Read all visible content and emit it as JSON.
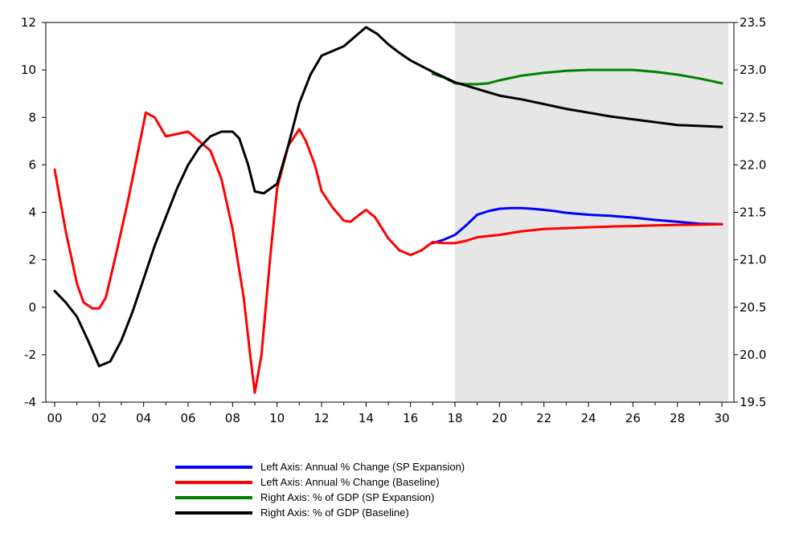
{
  "chart_data": {
    "type": "line",
    "x_tick_labels": [
      "00",
      "02",
      "04",
      "06",
      "08",
      "10",
      "12",
      "14",
      "16",
      "18",
      "20",
      "22",
      "24",
      "26",
      "28",
      "30"
    ],
    "xlim": [
      2000,
      2030
    ],
    "left_axis": {
      "ylim": [
        -4,
        12
      ],
      "ticks": [
        "-4",
        "-2",
        "0",
        "2",
        "4",
        "6",
        "8",
        "10",
        "12"
      ]
    },
    "right_axis": {
      "ylim": [
        19.5,
        23.5
      ],
      "ticks": [
        "19.5",
        "20.0",
        "20.5",
        "21.0",
        "21.5",
        "22.0",
        "22.5",
        "23.0",
        "23.5"
      ]
    },
    "shaded_region": {
      "x": [
        2018,
        2030.3
      ],
      "color": "#e6e6e6"
    },
    "grid": false,
    "legend_position": "bottom",
    "series": [
      {
        "name": "Left Axis: Annual % Change (SP Expansion)",
        "axis": "left",
        "color": "#0000ff",
        "points": [
          [
            2017,
            2.7
          ],
          [
            2017.5,
            2.85
          ],
          [
            2018,
            3.05
          ],
          [
            2018.5,
            3.45
          ],
          [
            2019,
            3.9
          ],
          [
            2019.5,
            4.05
          ],
          [
            2020,
            4.15
          ],
          [
            2020.5,
            4.18
          ],
          [
            2021,
            4.18
          ],
          [
            2021.5,
            4.15
          ],
          [
            2022,
            4.1
          ],
          [
            2022.5,
            4.05
          ],
          [
            2023,
            3.98
          ],
          [
            2024,
            3.9
          ],
          [
            2025,
            3.85
          ],
          [
            2026,
            3.78
          ],
          [
            2027,
            3.68
          ],
          [
            2028,
            3.6
          ],
          [
            2029,
            3.52
          ],
          [
            2030,
            3.5
          ]
        ]
      },
      {
        "name": "Left Axis: Annual % Change (Baseline)",
        "axis": "left",
        "color": "#ff0000",
        "points": [
          [
            2000,
            5.8
          ],
          [
            2000.5,
            3.2
          ],
          [
            2001,
            1.0
          ],
          [
            2001.3,
            0.2
          ],
          [
            2001.7,
            -0.05
          ],
          [
            2002,
            -0.05
          ],
          [
            2002.3,
            0.4
          ],
          [
            2002.8,
            2.4
          ],
          [
            2003.3,
            4.5
          ],
          [
            2003.8,
            6.8
          ],
          [
            2004.1,
            8.2
          ],
          [
            2004.5,
            8.0
          ],
          [
            2005,
            7.2
          ],
          [
            2005.5,
            7.3
          ],
          [
            2006,
            7.4
          ],
          [
            2006.5,
            7.0
          ],
          [
            2007,
            6.6
          ],
          [
            2007.5,
            5.4
          ],
          [
            2008,
            3.3
          ],
          [
            2008.5,
            0.4
          ],
          [
            2008.8,
            -2.1
          ],
          [
            2009,
            -3.6
          ],
          [
            2009.3,
            -2.0
          ],
          [
            2009.7,
            2.2
          ],
          [
            2010,
            5.0
          ],
          [
            2010.5,
            6.8
          ],
          [
            2011,
            7.5
          ],
          [
            2011.3,
            7.0
          ],
          [
            2011.7,
            6.0
          ],
          [
            2012,
            4.9
          ],
          [
            2012.5,
            4.2
          ],
          [
            2013,
            3.65
          ],
          [
            2013.3,
            3.6
          ],
          [
            2013.7,
            3.9
          ],
          [
            2014,
            4.1
          ],
          [
            2014.4,
            3.8
          ],
          [
            2015,
            2.9
          ],
          [
            2015.5,
            2.4
          ],
          [
            2016,
            2.2
          ],
          [
            2016.5,
            2.4
          ],
          [
            2017,
            2.75
          ],
          [
            2017.5,
            2.7
          ],
          [
            2018,
            2.7
          ],
          [
            2018.5,
            2.8
          ],
          [
            2019,
            2.95
          ],
          [
            2020,
            3.05
          ],
          [
            2021,
            3.2
          ],
          [
            2022,
            3.3
          ],
          [
            2023,
            3.33
          ],
          [
            2024,
            3.37
          ],
          [
            2025,
            3.4
          ],
          [
            2026,
            3.42
          ],
          [
            2027,
            3.45
          ],
          [
            2028,
            3.47
          ],
          [
            2029,
            3.48
          ],
          [
            2030,
            3.5
          ]
        ]
      },
      {
        "name": "Right Axis: % of GDP (SP Expansion)",
        "axis": "right",
        "color": "#008000",
        "points": [
          [
            2017,
            22.96
          ],
          [
            2017.5,
            22.92
          ],
          [
            2018,
            22.86
          ],
          [
            2018.5,
            22.85
          ],
          [
            2019,
            22.85
          ],
          [
            2019.5,
            22.86
          ],
          [
            2020,
            22.89
          ],
          [
            2021,
            22.94
          ],
          [
            2022,
            22.97
          ],
          [
            2023,
            22.99
          ],
          [
            2024,
            23.0
          ],
          [
            2025,
            23.0
          ],
          [
            2026,
            23.0
          ],
          [
            2027,
            22.98
          ],
          [
            2028,
            22.95
          ],
          [
            2029,
            22.91
          ],
          [
            2030,
            22.86
          ]
        ]
      },
      {
        "name": "Right Axis: % of GDP (Baseline)",
        "axis": "right",
        "color": "#000000",
        "points": [
          [
            2000,
            20.67
          ],
          [
            2000.5,
            20.55
          ],
          [
            2001,
            20.4
          ],
          [
            2001.5,
            20.15
          ],
          [
            2002,
            19.88
          ],
          [
            2002.5,
            19.93
          ],
          [
            2003,
            20.15
          ],
          [
            2003.5,
            20.45
          ],
          [
            2004,
            20.8
          ],
          [
            2004.5,
            21.15
          ],
          [
            2005,
            21.45
          ],
          [
            2005.5,
            21.75
          ],
          [
            2006,
            22.0
          ],
          [
            2006.5,
            22.18
          ],
          [
            2007,
            22.3
          ],
          [
            2007.5,
            22.35
          ],
          [
            2008,
            22.35
          ],
          [
            2008.3,
            22.28
          ],
          [
            2008.7,
            22.0
          ],
          [
            2009,
            21.72
          ],
          [
            2009.4,
            21.7
          ],
          [
            2010,
            21.8
          ],
          [
            2010.5,
            22.2
          ],
          [
            2011,
            22.65
          ],
          [
            2011.5,
            22.95
          ],
          [
            2012,
            23.15
          ],
          [
            2012.5,
            23.2
          ],
          [
            2013,
            23.25
          ],
          [
            2013.5,
            23.35
          ],
          [
            2014,
            23.45
          ],
          [
            2014.5,
            23.38
          ],
          [
            2015,
            23.27
          ],
          [
            2015.5,
            23.18
          ],
          [
            2016,
            23.1
          ],
          [
            2017,
            22.98
          ],
          [
            2018,
            22.87
          ],
          [
            2019,
            22.8
          ],
          [
            2020,
            22.73
          ],
          [
            2021,
            22.69
          ],
          [
            2022,
            22.64
          ],
          [
            2023,
            22.59
          ],
          [
            2024,
            22.55
          ],
          [
            2025,
            22.51
          ],
          [
            2026,
            22.48
          ],
          [
            2027,
            22.45
          ],
          [
            2028,
            22.42
          ],
          [
            2029,
            22.41
          ],
          [
            2030,
            22.4
          ]
        ]
      }
    ]
  }
}
